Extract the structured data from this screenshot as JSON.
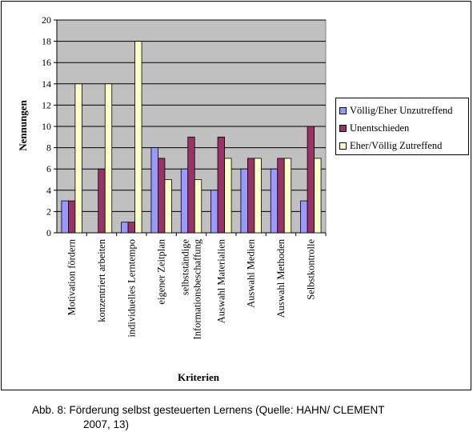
{
  "chart_data": {
    "type": "bar",
    "title": "",
    "xlabel": "Kriterien",
    "ylabel": "Nennungen",
    "ylim": [
      0,
      20
    ],
    "yticks": [
      0,
      2,
      4,
      6,
      8,
      10,
      12,
      14,
      16,
      18,
      20
    ],
    "grid": true,
    "legend_position": "right",
    "categories": [
      "Motivation fördern",
      "konzentriert arbeiten",
      "individuelles Lerntempo",
      "eigener Zeitplan",
      "selbstständige Informationsbeschaffung",
      "Auswahl Materialien",
      "Auswahl Medien",
      "Auswahl Methoden",
      "Selbstkontrolle"
    ],
    "category_label_lines": [
      [
        "Motivation fördern"
      ],
      [
        "konzentriert arbeiten"
      ],
      [
        "individuelles Lerntempo"
      ],
      [
        "eigener Zeitplan"
      ],
      [
        "selbstständige",
        "Informationsbeschaffung"
      ],
      [
        "Auswahl Materialien"
      ],
      [
        "Auswahl Medien"
      ],
      [
        "Auswahl Methoden"
      ],
      [
        "Selbstkontrolle"
      ]
    ],
    "series": [
      {
        "name": "Völlig/Eher Unzutreffend",
        "color": "#9999ff",
        "values": [
          3,
          0,
          1,
          8,
          6,
          4,
          6,
          6,
          3
        ]
      },
      {
        "name": "Unentschieden",
        "color": "#993366",
        "values": [
          3,
          6,
          1,
          7,
          9,
          9,
          7,
          7,
          10
        ]
      },
      {
        "name": "Eher/Völlig Zutreffend",
        "color": "#ffffcc",
        "values": [
          14,
          14,
          18,
          5,
          5,
          7,
          7,
          7,
          7
        ]
      }
    ],
    "plot_background": "#c0c0c0"
  },
  "caption": {
    "line1": "Abb. 8:  Förderung selbst gesteuerten Lernens (Quelle: HAHN/ CLEMENT",
    "line2": "2007, 13)"
  }
}
